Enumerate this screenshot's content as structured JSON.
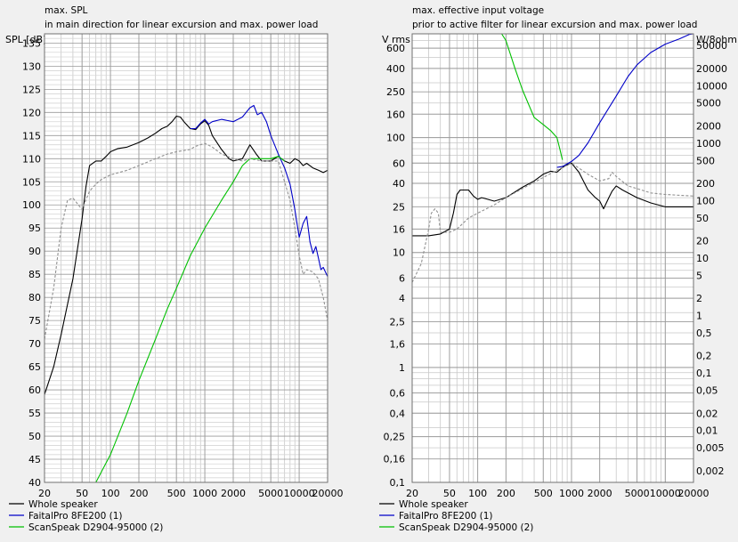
{
  "chart_data": [
    {
      "type": "line",
      "title": "max. SPL",
      "subtitle": "in main direction for linear excursion and max. power load",
      "ylabel": "SPL [dB]",
      "xscale": "log",
      "xlim": [
        20,
        20000
      ],
      "ylim": [
        40,
        137
      ],
      "grid": true,
      "legend": "bottom-left",
      "x_ticks": [
        20,
        50,
        100,
        200,
        500,
        1000,
        2000,
        5000,
        10000,
        20000
      ],
      "x_tick_labels": [
        "20",
        "50",
        "100",
        "200",
        "500",
        "1000",
        "2000",
        "5000",
        "10000",
        "20000"
      ],
      "y_ticks": [
        40,
        45,
        50,
        55,
        60,
        65,
        70,
        75,
        80,
        85,
        90,
        95,
        100,
        105,
        110,
        115,
        120,
        125,
        130,
        135
      ],
      "y_tick_labels": [
        "40",
        "45",
        "50",
        "55",
        "60",
        "65",
        "70",
        "75",
        "80",
        "85",
        "90",
        "95",
        "100",
        "105",
        "110",
        "115",
        "120",
        "125",
        "130",
        "135"
      ],
      "series": [
        {
          "name": "Whole speaker",
          "color": "#000000",
          "dash": false,
          "points": [
            [
              20,
              59
            ],
            [
              25,
              65
            ],
            [
              30,
              72
            ],
            [
              40,
              84
            ],
            [
              50,
              97
            ],
            [
              55,
              104
            ],
            [
              60,
              108.5
            ],
            [
              70,
              109.5
            ],
            [
              80,
              109.5
            ],
            [
              90,
              110.5
            ],
            [
              100,
              111.5
            ],
            [
              120,
              112.2
            ],
            [
              150,
              112.5
            ],
            [
              200,
              113.5
            ],
            [
              250,
              114.5
            ],
            [
              300,
              115.5
            ],
            [
              350,
              116.5
            ],
            [
              400,
              117
            ],
            [
              450,
              118
            ],
            [
              500,
              119.2
            ],
            [
              550,
              119
            ],
            [
              600,
              118
            ],
            [
              700,
              116.5
            ],
            [
              800,
              116.3
            ],
            [
              900,
              117.5
            ],
            [
              1000,
              118.2
            ],
            [
              1100,
              117.2
            ],
            [
              1200,
              115
            ],
            [
              1500,
              112
            ],
            [
              1800,
              110
            ],
            [
              2000,
              109.5
            ],
            [
              2500,
              110
            ],
            [
              3000,
              113
            ],
            [
              3500,
              111
            ],
            [
              4000,
              109.5
            ],
            [
              5000,
              109.5
            ],
            [
              6000,
              110.5
            ],
            [
              7000,
              109.5
            ],
            [
              8000,
              109
            ],
            [
              9000,
              110
            ],
            [
              10000,
              109.5
            ],
            [
              11000,
              108.5
            ],
            [
              12000,
              109
            ],
            [
              14000,
              108
            ],
            [
              16000,
              107.5
            ],
            [
              18000,
              107
            ],
            [
              20000,
              107.5
            ]
          ]
        },
        {
          "name": "FaitalPro 8FE200 (1)",
          "color": "#0000c8",
          "dash": false,
          "points": [
            [
              700,
              116.5
            ],
            [
              800,
              116.5
            ],
            [
              900,
              117.7
            ],
            [
              1000,
              118.5
            ],
            [
              1100,
              117.5
            ],
            [
              1200,
              118
            ],
            [
              1500,
              118.5
            ],
            [
              2000,
              118
            ],
            [
              2500,
              119
            ],
            [
              3000,
              121
            ],
            [
              3300,
              121.5
            ],
            [
              3600,
              119.5
            ],
            [
              4000,
              120
            ],
            [
              4500,
              118
            ],
            [
              5000,
              115
            ],
            [
              6000,
              111
            ],
            [
              7000,
              108
            ],
            [
              8000,
              104.5
            ],
            [
              9000,
              99
            ],
            [
              10000,
              93
            ],
            [
              11000,
              96
            ],
            [
              12000,
              97.5
            ],
            [
              13000,
              92
            ],
            [
              14000,
              89.5
            ],
            [
              15000,
              91
            ],
            [
              16000,
              88.5
            ],
            [
              17000,
              86
            ],
            [
              18000,
              86.5
            ],
            [
              20000,
              84.5
            ]
          ]
        },
        {
          "name": "ScanSpeak D2904-95000 (2)",
          "color": "#00c000",
          "dash": false,
          "points": [
            [
              20,
              40
            ],
            [
              70,
              40
            ],
            [
              100,
              46
            ],
            [
              150,
              55
            ],
            [
              200,
              62
            ],
            [
              300,
              71
            ],
            [
              400,
              77.5
            ],
            [
              500,
              82
            ],
            [
              700,
              89
            ],
            [
              1000,
              95
            ],
            [
              1500,
              101
            ],
            [
              2000,
              105
            ],
            [
              2500,
              108.5
            ],
            [
              3000,
              110
            ],
            [
              4000,
              110
            ],
            [
              5000,
              110
            ],
            [
              6000,
              110.5
            ],
            [
              7000,
              109.5
            ]
          ]
        },
        {
          "name": "",
          "color": "#909090",
          "dash": true,
          "points": [
            [
              20,
              71
            ],
            [
              25,
              82
            ],
            [
              30,
              95
            ],
            [
              35,
              101
            ],
            [
              40,
              101.5
            ],
            [
              50,
              99
            ],
            [
              60,
              103
            ],
            [
              70,
              104.5
            ],
            [
              80,
              105.5
            ],
            [
              100,
              106.5
            ],
            [
              150,
              107.5
            ],
            [
              200,
              108.5
            ],
            [
              300,
              110
            ],
            [
              400,
              111
            ],
            [
              500,
              111.5
            ],
            [
              700,
              112
            ],
            [
              800,
              112.7
            ],
            [
              1000,
              113.3
            ],
            [
              1200,
              112.5
            ],
            [
              1500,
              111
            ],
            [
              2000,
              110
            ],
            [
              2500,
              109.5
            ],
            [
              3000,
              110
            ],
            [
              4000,
              109.5
            ],
            [
              5000,
              109.5
            ],
            [
              6000,
              109.5
            ],
            [
              7000,
              105
            ],
            [
              8000,
              101
            ],
            [
              9000,
              95
            ],
            [
              10000,
              89
            ],
            [
              11000,
              85
            ],
            [
              12000,
              86
            ],
            [
              14000,
              85.5
            ],
            [
              16000,
              84
            ],
            [
              18000,
              80
            ],
            [
              20000,
              75
            ]
          ]
        }
      ]
    },
    {
      "type": "line",
      "title": "max. effective input voltage",
      "subtitle": "prior to active filter for linear excursion and max. power load",
      "ylabel": "V rms",
      "y2label": "W/8ohm",
      "xscale": "log",
      "yscale": "log",
      "xlim": [
        20,
        20000
      ],
      "ylim": [
        0.1,
        800
      ],
      "grid": true,
      "legend": "bottom-left",
      "x_ticks": [
        20,
        50,
        100,
        200,
        500,
        1000,
        2000,
        5000,
        10000,
        20000
      ],
      "x_tick_labels": [
        "20",
        "50",
        "100",
        "200",
        "500",
        "1000",
        "2000",
        "5000",
        "10000",
        "20000"
      ],
      "y_ticks": [
        0.1,
        0.16,
        0.25,
        0.4,
        0.6,
        1,
        1.6,
        2.5,
        4,
        6,
        10,
        16,
        25,
        40,
        60,
        100,
        160,
        250,
        400,
        600
      ],
      "y_tick_labels": [
        "0,1",
        "0,16",
        "0,25",
        "0,4",
        "0,6",
        "1",
        "1,6",
        "2,5",
        "4",
        "6",
        "10",
        "16",
        "25",
        "40",
        "60",
        "100",
        "160",
        "250",
        "400",
        "600"
      ],
      "y2_ticks": [
        0.002,
        0.005,
        0.01,
        0.02,
        0.05,
        0.1,
        0.2,
        0.5,
        1,
        2,
        5,
        10,
        20,
        50,
        100,
        200,
        500,
        1000,
        2000,
        5000,
        10000,
        20000,
        50000
      ],
      "y2_tick_labels": [
        "0,002",
        "0,005",
        "0,01",
        "0,02",
        "0,05",
        "0,1",
        "0,2",
        "0,5",
        "1",
        "2",
        "5",
        "10",
        "20",
        "50",
        "100",
        "200",
        "500",
        "1000",
        "2000",
        "5000",
        "10000",
        "20000",
        "50000"
      ],
      "series": [
        {
          "name": "Whole speaker",
          "color": "#000000",
          "dash": false,
          "points": [
            [
              20,
              14
            ],
            [
              30,
              14
            ],
            [
              40,
              14.5
            ],
            [
              50,
              16
            ],
            [
              55,
              22
            ],
            [
              60,
              32
            ],
            [
              65,
              35
            ],
            [
              80,
              35
            ],
            [
              90,
              31
            ],
            [
              100,
              29
            ],
            [
              110,
              30
            ],
            [
              120,
              29.5
            ],
            [
              150,
              28
            ],
            [
              200,
              30
            ],
            [
              300,
              37
            ],
            [
              400,
              42
            ],
            [
              500,
              48
            ],
            [
              600,
              51
            ],
            [
              700,
              50
            ],
            [
              800,
              55
            ],
            [
              900,
              58
            ],
            [
              1000,
              60
            ],
            [
              1200,
              50
            ],
            [
              1500,
              35
            ],
            [
              1800,
              30
            ],
            [
              2000,
              28
            ],
            [
              2200,
              24
            ],
            [
              2500,
              30
            ],
            [
              2700,
              34
            ],
            [
              3000,
              38
            ],
            [
              3500,
              35
            ],
            [
              5000,
              30
            ],
            [
              7000,
              27
            ],
            [
              10000,
              25
            ],
            [
              20000,
              25
            ]
          ]
        },
        {
          "name": "FaitalPro 8FE200 (1)",
          "color": "#0000c8",
          "dash": false,
          "points": [
            [
              700,
              55
            ],
            [
              800,
              56
            ],
            [
              1000,
              62
            ],
            [
              1200,
              70
            ],
            [
              1500,
              90
            ],
            [
              2000,
              135
            ],
            [
              3000,
              230
            ],
            [
              4000,
              340
            ],
            [
              5000,
              430
            ],
            [
              7000,
              550
            ],
            [
              10000,
              650
            ],
            [
              14000,
              720
            ],
            [
              18000,
              790
            ],
            [
              20000,
              800
            ]
          ]
        },
        {
          "name": "ScanSpeak D2904-95000 (2)",
          "color": "#00c000",
          "dash": false,
          "points": [
            [
              20,
              800
            ],
            [
              180,
              800
            ],
            [
              200,
              700
            ],
            [
              250,
              400
            ],
            [
              300,
              260
            ],
            [
              400,
              150
            ],
            [
              500,
              130
            ],
            [
              600,
              115
            ],
            [
              700,
              100
            ],
            [
              750,
              80
            ],
            [
              800,
              64
            ]
          ]
        },
        {
          "name": "",
          "color": "#909090",
          "dash": true,
          "points": [
            [
              20,
              5.5
            ],
            [
              25,
              8
            ],
            [
              30,
              16
            ],
            [
              32,
              22
            ],
            [
              35,
              24
            ],
            [
              38,
              22
            ],
            [
              40,
              15
            ],
            [
              50,
              15
            ],
            [
              60,
              16
            ],
            [
              80,
              20
            ],
            [
              100,
              22
            ],
            [
              150,
              26
            ],
            [
              200,
              30
            ],
            [
              300,
              36
            ],
            [
              500,
              45
            ],
            [
              700,
              52
            ],
            [
              1000,
              60
            ],
            [
              1500,
              48
            ],
            [
              2000,
              42
            ],
            [
              2500,
              44
            ],
            [
              2700,
              50
            ],
            [
              3000,
              46
            ],
            [
              4000,
              38
            ],
            [
              5000,
              36
            ],
            [
              7000,
              33
            ],
            [
              10000,
              32
            ],
            [
              20000,
              31
            ]
          ]
        }
      ]
    }
  ]
}
